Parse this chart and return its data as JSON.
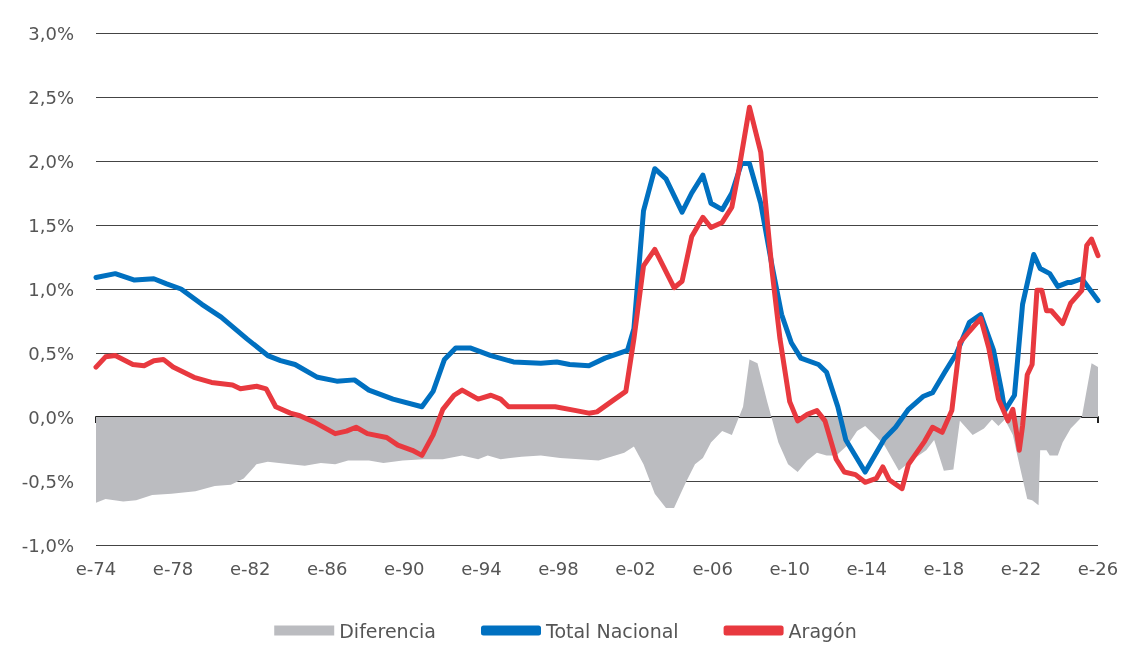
{
  "chart_data": {
    "type": "line",
    "xlim": [
      "1974-01",
      "2026-01"
    ],
    "ylim": [
      -1,
      3
    ],
    "xticks": [
      {
        "value": "1974-01",
        "label": "e-74"
      },
      {
        "value": "1978-01",
        "label": "e-78"
      },
      {
        "value": "1982-01",
        "label": "e-82"
      },
      {
        "value": "1986-01",
        "label": "e-86"
      },
      {
        "value": "1990-01",
        "label": "e-90"
      },
      {
        "value": "1994-01",
        "label": "e-94"
      },
      {
        "value": "1998-01",
        "label": "e-98"
      },
      {
        "value": "2002-01",
        "label": "e-02"
      },
      {
        "value": "2006-01",
        "label": "e-06"
      },
      {
        "value": "2010-01",
        "label": "e-10"
      },
      {
        "value": "2014-01",
        "label": "e-14"
      },
      {
        "value": "2018-01",
        "label": "e-18"
      },
      {
        "value": "2022-01",
        "label": "e-22"
      },
      {
        "value": "2026-01",
        "label": "e-26"
      }
    ],
    "yticks": [
      {
        "value": -1,
        "label": "-1,0%"
      },
      {
        "value": -0.5,
        "label": "-0,5%"
      },
      {
        "value": 0,
        "label": "0,0%"
      },
      {
        "value": 0.5,
        "label": "0,5%"
      },
      {
        "value": 1,
        "label": "1,0%"
      },
      {
        "value": 1.5,
        "label": "1,5%"
      },
      {
        "value": 2,
        "label": "2,0%"
      },
      {
        "value": 2.5,
        "label": "2,5%"
      },
      {
        "value": 3,
        "label": "3,0%"
      }
    ],
    "grid": "y",
    "legend": "bottom",
    "line_style": "solid",
    "marker": "none",
    "series": [
      {
        "name": "Diferencia",
        "type": "area",
        "color": "#bbbcc0",
        "x": [
          "1974-01",
          "1974-07",
          "1975-06",
          "1976-02",
          "1976-12",
          "1977-12",
          "1979-03",
          "1980-03",
          "1981-01",
          "1981-09",
          "1982-05",
          "1982-12",
          "1984-02",
          "1984-11",
          "1985-09",
          "1986-06",
          "1987-02",
          "1988-03",
          "1988-12",
          "1989-12",
          "1991-01",
          "1992-01",
          "1993-01",
          "1993-11",
          "1994-05",
          "1995-01",
          "1996-02",
          "1997-02",
          "1998-02",
          "1999-02",
          "2000-02",
          "2001-06",
          "2001-12",
          "2002-06",
          "2003-01",
          "2003-08",
          "2004-01",
          "2004-08",
          "2005-02",
          "2005-07",
          "2005-12",
          "2006-07",
          "2007-01",
          "2007-08",
          "2007-12",
          "2008-05",
          "2008-11",
          "2009-06",
          "2009-12",
          "2010-06",
          "2010-12",
          "2011-06",
          "2011-12",
          "2012-06",
          "2013-01",
          "2013-07",
          "2013-12",
          "2014-05",
          "2014-12",
          "2015-09",
          "2016-06",
          "2017-02",
          "2017-07",
          "2018-01",
          "2018-07",
          "2018-11",
          "2019-07",
          "2020-02",
          "2020-07",
          "2020-11",
          "2021-03",
          "2021-08",
          "2021-12",
          "2022-05",
          "2022-08",
          "2022-12",
          "2023-01",
          "2023-05",
          "2023-07",
          "2023-12",
          "2024-03",
          "2024-08",
          "2025-03",
          "2025-06",
          "2025-09",
          "2026-01"
        ],
        "values": [
          -0.67,
          -0.64,
          -0.66,
          -0.65,
          -0.61,
          -0.6,
          -0.58,
          -0.54,
          -0.53,
          -0.48,
          -0.37,
          -0.35,
          -0.37,
          -0.38,
          -0.36,
          -0.37,
          -0.34,
          -0.34,
          -0.36,
          -0.34,
          -0.33,
          -0.33,
          -0.3,
          -0.33,
          -0.3,
          -0.33,
          -0.31,
          -0.3,
          -0.32,
          -0.33,
          -0.34,
          -0.28,
          -0.23,
          -0.37,
          -0.6,
          -0.71,
          -0.71,
          -0.52,
          -0.37,
          -0.32,
          -0.2,
          -0.11,
          -0.14,
          0.08,
          0.45,
          0.42,
          0.12,
          -0.2,
          -0.37,
          -0.43,
          -0.34,
          -0.28,
          -0.3,
          -0.3,
          -0.22,
          -0.11,
          -0.07,
          -0.13,
          -0.22,
          -0.42,
          -0.33,
          -0.26,
          -0.18,
          -0.42,
          -0.41,
          -0.03,
          -0.14,
          -0.09,
          -0.02,
          -0.07,
          -0.02,
          -0.14,
          -0.37,
          -0.64,
          -0.65,
          -0.69,
          -0.26,
          -0.26,
          -0.3,
          -0.3,
          -0.2,
          -0.09,
          0.0,
          0.21,
          0.42,
          0.39
        ]
      },
      {
        "name": "Total Nacional",
        "color": "#0070c0",
        "x": [
          "1974-01",
          "1975-01",
          "1976-01",
          "1977-01",
          "1977-09",
          "1978-06",
          "1979-07",
          "1980-07",
          "1981-11",
          "1982-12",
          "1983-08",
          "1984-05",
          "1985-07",
          "1986-07",
          "1987-06",
          "1988-03",
          "1989-06",
          "1990-12",
          "1991-07",
          "1992-02",
          "1992-09",
          "1993-06",
          "1994-07",
          "1995-09",
          "1997-02",
          "1997-12",
          "1998-08",
          "1999-08",
          "2000-06",
          "2001-08",
          "2001-12",
          "2002-06",
          "2003-01",
          "2003-08",
          "2004-06",
          "2004-12",
          "2005-07",
          "2005-12",
          "2006-07",
          "2007-01",
          "2007-07",
          "2007-12",
          "2008-07",
          "2009-02",
          "2009-08",
          "2010-02",
          "2010-08",
          "2011-07",
          "2011-12",
          "2012-07",
          "2012-12",
          "2013-12",
          "2014-12",
          "2015-07",
          "2016-03",
          "2016-12",
          "2017-06",
          "2018-02",
          "2018-09",
          "2019-05",
          "2019-12",
          "2020-08",
          "2021-01",
          "2021-03",
          "2021-09",
          "2022-02",
          "2022-09",
          "2023-01",
          "2023-07",
          "2023-12",
          "2024-06",
          "2024-08",
          "2025-03",
          "2026-01"
        ],
        "values": [
          1.09,
          1.12,
          1.07,
          1.08,
          1.04,
          1.0,
          0.88,
          0.78,
          0.61,
          0.48,
          0.44,
          0.41,
          0.31,
          0.28,
          0.29,
          0.21,
          0.14,
          0.08,
          0.2,
          0.45,
          0.54,
          0.54,
          0.48,
          0.43,
          0.42,
          0.43,
          0.41,
          0.4,
          0.46,
          0.52,
          0.69,
          1.61,
          1.94,
          1.86,
          1.6,
          1.75,
          1.89,
          1.67,
          1.62,
          1.75,
          1.98,
          1.98,
          1.67,
          1.18,
          0.8,
          0.58,
          0.46,
          0.41,
          0.35,
          0.08,
          -0.18,
          -0.43,
          -0.17,
          -0.08,
          0.06,
          0.16,
          0.19,
          0.36,
          0.5,
          0.74,
          0.8,
          0.52,
          0.2,
          0.05,
          0.17,
          0.88,
          1.27,
          1.16,
          1.12,
          1.02,
          1.05,
          1.05,
          1.08,
          0.91
        ]
      },
      {
        "name": "Aragón",
        "color": "#e8393f",
        "x": [
          "1974-01",
          "1974-07",
          "1975-01",
          "1975-12",
          "1976-07",
          "1977-01",
          "1977-07",
          "1978-01",
          "1979-02",
          "1980-01",
          "1981-02",
          "1981-07",
          "1982-05",
          "1982-11",
          "1983-05",
          "1984-02",
          "1984-08",
          "1985-05",
          "1986-06",
          "1987-01",
          "1987-07",
          "1988-02",
          "1989-02",
          "1989-09",
          "1990-06",
          "1990-12",
          "1991-07",
          "1992-01",
          "1992-08",
          "1993-01",
          "1993-11",
          "1994-07",
          "1995-01",
          "1995-06",
          "1996-08",
          "1997-05",
          "1997-11",
          "1998-12",
          "1999-08",
          "2000-01",
          "2000-11",
          "2001-07",
          "2001-12",
          "2002-06",
          "2003-01",
          "2004-01",
          "2004-06",
          "2004-12",
          "2005-07",
          "2005-12",
          "2006-07",
          "2007-01",
          "2007-05",
          "2007-12",
          "2008-07",
          "2009-02",
          "2009-07",
          "2010-01",
          "2010-06",
          "2010-12",
          "2011-06",
          "2011-11",
          "2012-06",
          "2012-11",
          "2013-06",
          "2013-12",
          "2014-07",
          "2014-11",
          "2015-03",
          "2015-11",
          "2016-03",
          "2017-01",
          "2017-06",
          "2017-12",
          "2018-06",
          "2018-11",
          "2019-05",
          "2019-12",
          "2020-05",
          "2020-11",
          "2021-05",
          "2021-08",
          "2021-12",
          "2022-02",
          "2022-05",
          "2022-08",
          "2022-11",
          "2023-02",
          "2023-05",
          "2023-08",
          "2024-03",
          "2024-08",
          "2025-03",
          "2025-06",
          "2025-09",
          "2026-01"
        ],
        "values": [
          0.39,
          0.47,
          0.48,
          0.41,
          0.4,
          0.44,
          0.45,
          0.39,
          0.31,
          0.27,
          0.25,
          0.22,
          0.24,
          0.22,
          0.08,
          0.03,
          0.01,
          -0.04,
          -0.13,
          -0.11,
          -0.08,
          -0.13,
          -0.16,
          -0.22,
          -0.26,
          -0.3,
          -0.14,
          0.06,
          0.17,
          0.21,
          0.14,
          0.17,
          0.14,
          0.08,
          0.08,
          0.08,
          0.08,
          0.05,
          0.03,
          0.04,
          0.13,
          0.2,
          0.61,
          1.18,
          1.31,
          1.01,
          1.06,
          1.41,
          1.56,
          1.48,
          1.52,
          1.64,
          1.9,
          2.42,
          2.07,
          1.14,
          0.61,
          0.12,
          -0.03,
          0.02,
          0.05,
          -0.03,
          -0.33,
          -0.43,
          -0.45,
          -0.51,
          -0.48,
          -0.39,
          -0.49,
          -0.56,
          -0.37,
          -0.19,
          -0.08,
          -0.12,
          0.05,
          0.58,
          0.67,
          0.77,
          0.54,
          0.14,
          -0.03,
          0.06,
          -0.26,
          -0.07,
          0.33,
          0.41,
          0.99,
          0.99,
          0.83,
          0.83,
          0.73,
          0.89,
          0.99,
          1.34,
          1.39,
          1.26
        ]
      }
    ]
  }
}
